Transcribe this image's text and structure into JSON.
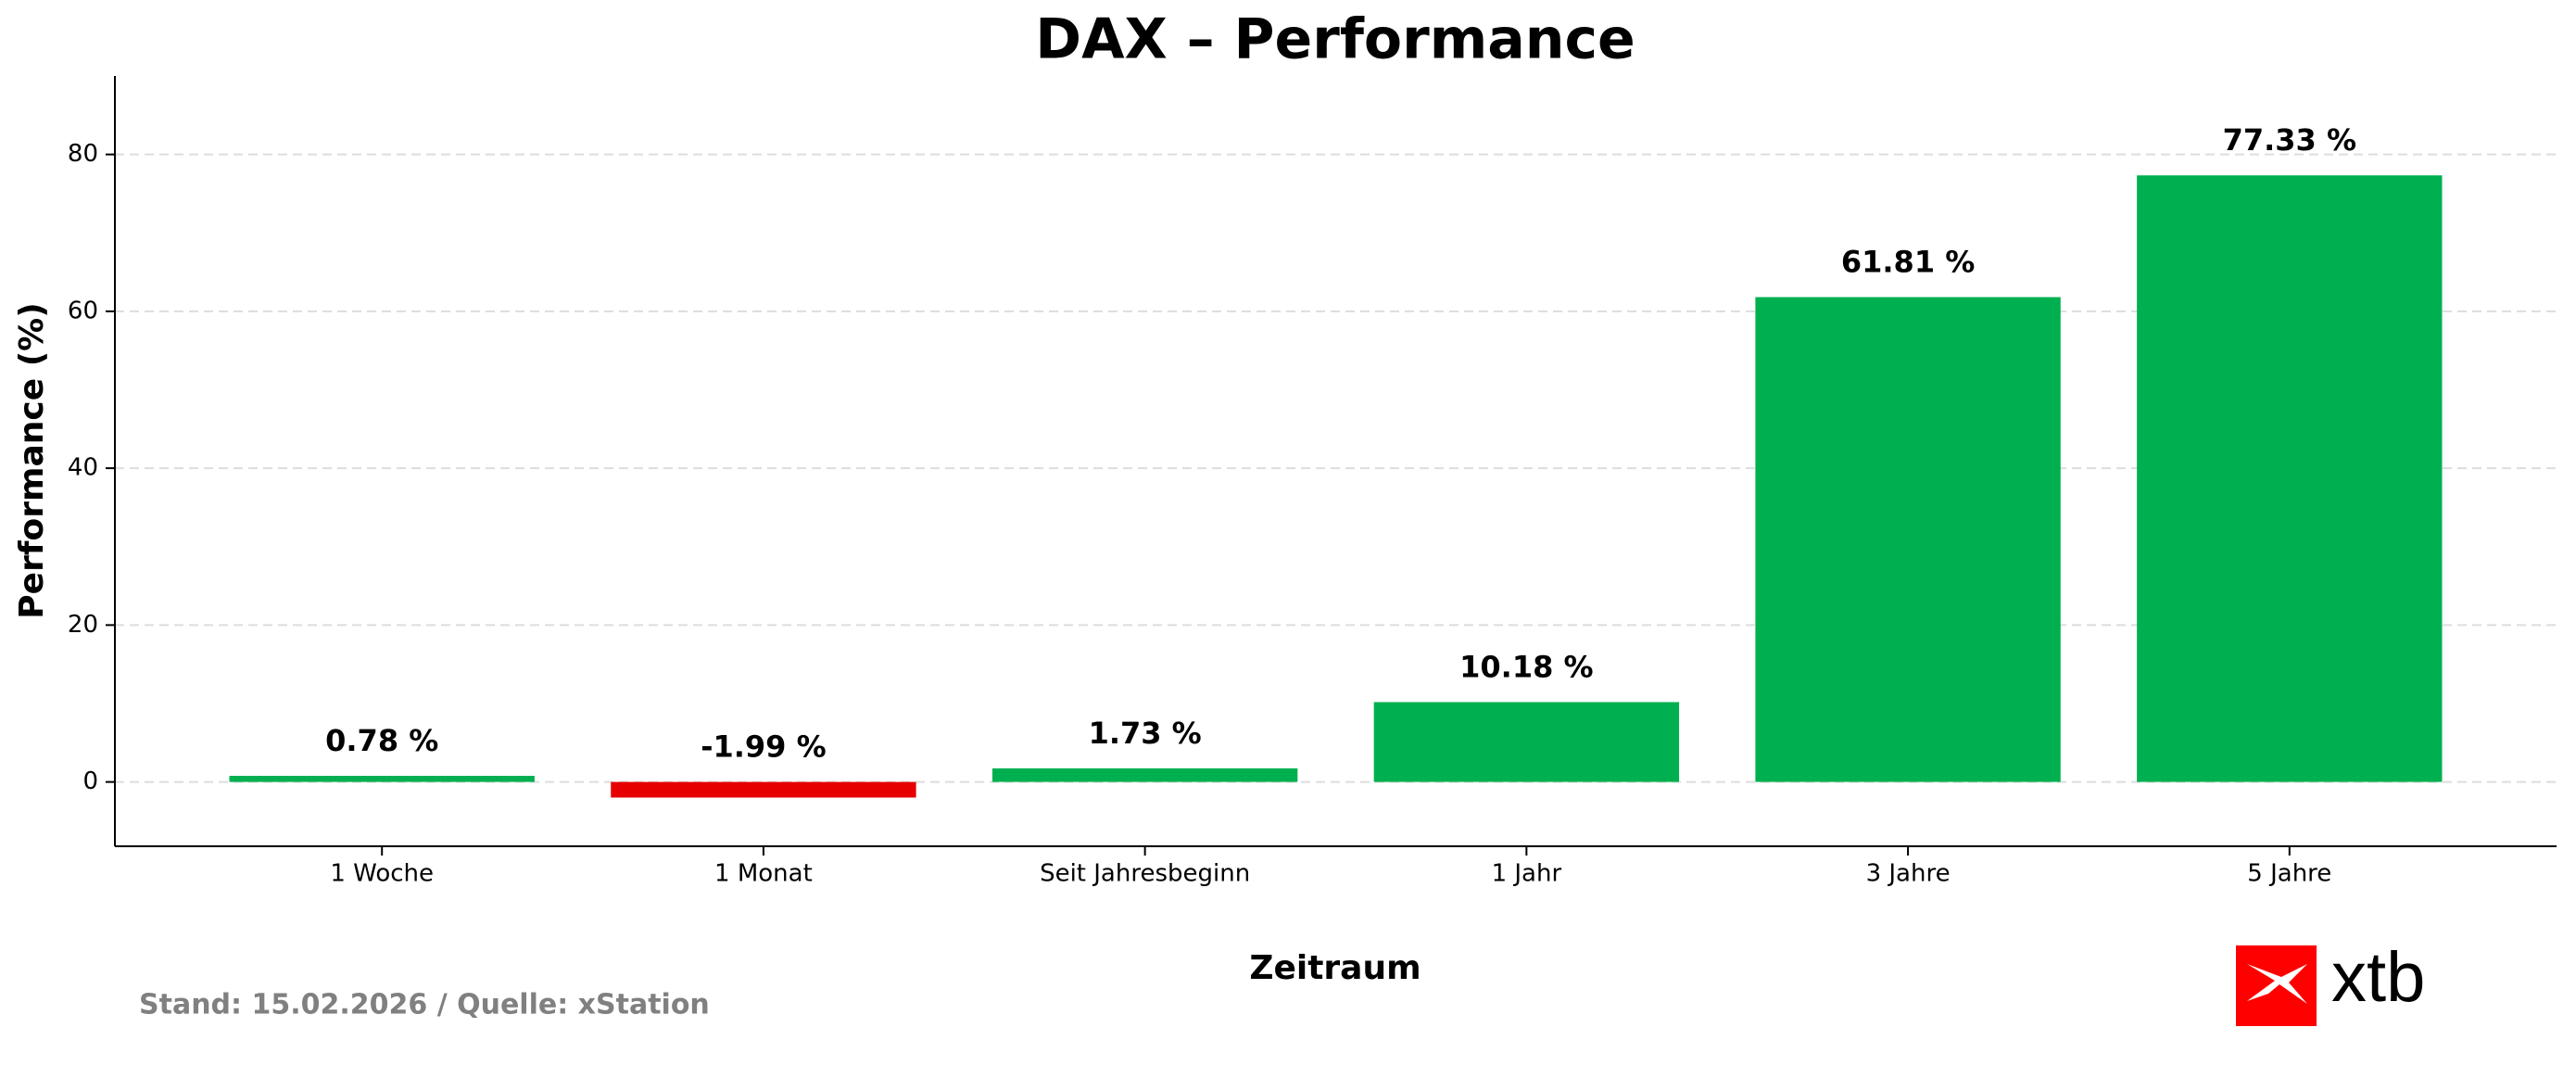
{
  "chart_data": {
    "type": "bar",
    "title": "DAX – Performance",
    "x_label": "Zeitraum",
    "y_label": "Performance (%)",
    "categories": [
      "1 Woche",
      "1 Monat",
      "Seit Jahresbeginn",
      "1 Jahr",
      "3 Jahre",
      "5 Jahre"
    ],
    "values": [
      0.78,
      -1.99,
      1.73,
      10.18,
      61.81,
      77.33
    ],
    "value_labels": [
      "0.78 %",
      "-1.99 %",
      "1.73 %",
      "10.18 %",
      "61.81 %",
      "77.33 %"
    ],
    "colors": [
      "#00b050",
      "#e60000",
      "#00b050",
      "#00b050",
      "#00b050",
      "#00b050"
    ],
    "ylim": [
      -8.2,
      90
    ],
    "yticks": [
      0,
      20,
      40,
      60,
      80
    ],
    "grid": true,
    "footer": "Stand: 15.02.2026 / Quelle: xStation",
    "logo_text": "xtb"
  }
}
